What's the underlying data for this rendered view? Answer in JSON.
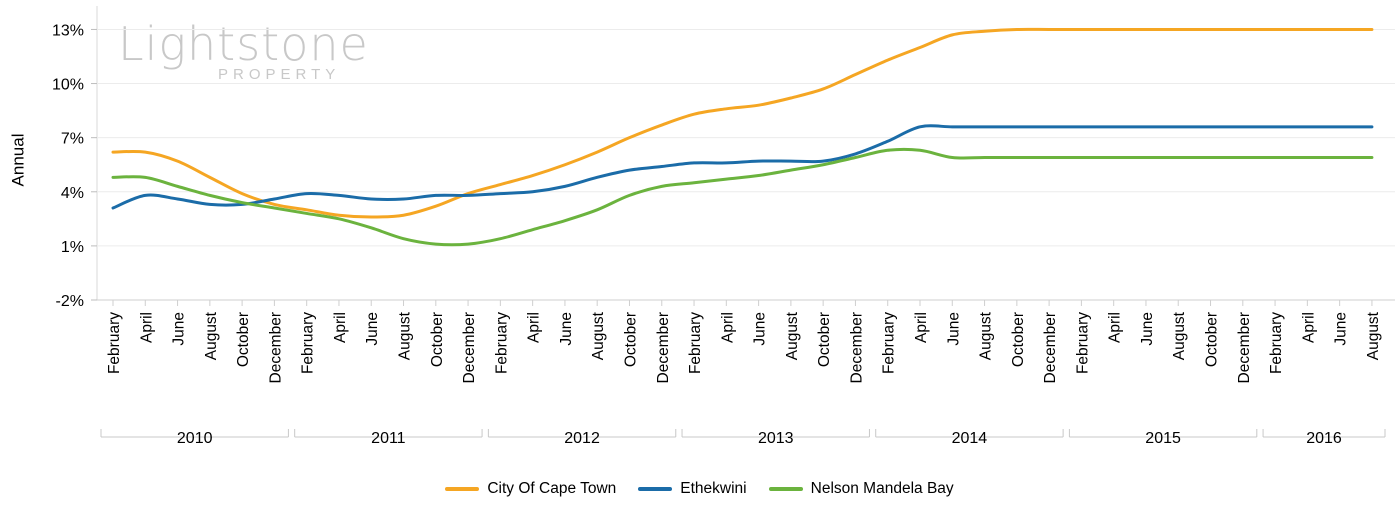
{
  "watermark": {
    "main": "Lightstone",
    "sub": "PROPERTY"
  },
  "chart_data": {
    "type": "line",
    "title": "",
    "xlabel": "",
    "ylabel": "Annual",
    "ylim": [
      -2,
      14
    ],
    "yticks": [
      "13%",
      "10%",
      "7%",
      "4%",
      "1%",
      "-2%"
    ],
    "ytick_values": [
      13,
      10,
      7,
      4,
      1,
      -2
    ],
    "grid": true,
    "legend_position": "bottom",
    "x": [
      "February",
      "April",
      "June",
      "August",
      "October",
      "December",
      "February",
      "April",
      "June",
      "August",
      "October",
      "December",
      "February",
      "April",
      "June",
      "August",
      "October",
      "December",
      "February",
      "April",
      "June",
      "August",
      "October",
      "December",
      "February",
      "April",
      "June",
      "August",
      "October",
      "December",
      "February",
      "April",
      "June",
      "August",
      "October",
      "December",
      "February",
      "April",
      "June",
      "August"
    ],
    "years": [
      {
        "label": "2010",
        "first": 0,
        "last": 5
      },
      {
        "label": "2011",
        "first": 6,
        "last": 11
      },
      {
        "label": "2012",
        "first": 12,
        "last": 17
      },
      {
        "label": "2013",
        "first": 18,
        "last": 23
      },
      {
        "label": "2014",
        "first": 24,
        "last": 29
      },
      {
        "label": "2015",
        "first": 30,
        "last": 35
      },
      {
        "label": "2016",
        "first": 36,
        "last": 39
      }
    ],
    "series": [
      {
        "name": "City Of Cape Town",
        "color": "#F5A623",
        "values": [
          6.2,
          6.2,
          5.7,
          4.8,
          3.9,
          3.3,
          3.0,
          2.7,
          2.6,
          2.7,
          3.2,
          3.9,
          4.4,
          4.9,
          5.5,
          6.2,
          7.0,
          7.7,
          8.3,
          8.6,
          8.8,
          9.2,
          9.7,
          10.5,
          11.3,
          12.0,
          12.7,
          12.9,
          13.0,
          13.0,
          13.0,
          13.0,
          13.0,
          13.0,
          13.0,
          13.0,
          13.0,
          13.0,
          13.0,
          13.0
        ]
      },
      {
        "name": "Ethekwini",
        "color": "#1B6CA8",
        "values": [
          3.1,
          3.8,
          3.6,
          3.3,
          3.3,
          3.6,
          3.9,
          3.8,
          3.6,
          3.6,
          3.8,
          3.8,
          3.9,
          4.0,
          4.3,
          4.8,
          5.2,
          5.4,
          5.6,
          5.6,
          5.7,
          5.7,
          5.7,
          6.1,
          6.8,
          7.6,
          7.6,
          7.6,
          7.6,
          7.6,
          7.6,
          7.6,
          7.6,
          7.6,
          7.6,
          7.6,
          7.6,
          7.6,
          7.6,
          7.6
        ]
      },
      {
        "name": "Nelson Mandela Bay",
        "color": "#6BB33E",
        "values": [
          4.8,
          4.8,
          4.3,
          3.8,
          3.4,
          3.1,
          2.8,
          2.5,
          2.0,
          1.4,
          1.1,
          1.1,
          1.4,
          1.9,
          2.4,
          3.0,
          3.8,
          4.3,
          4.5,
          4.7,
          4.9,
          5.2,
          5.5,
          5.9,
          6.3,
          6.3,
          5.9,
          5.9,
          5.9,
          5.9,
          5.9,
          5.9,
          5.9,
          5.9,
          5.9,
          5.9,
          5.9,
          5.9,
          5.9,
          5.9
        ]
      }
    ]
  },
  "legend": {
    "items": [
      "City Of Cape Town",
      "Ethekwini",
      "Nelson Mandela Bay"
    ]
  }
}
